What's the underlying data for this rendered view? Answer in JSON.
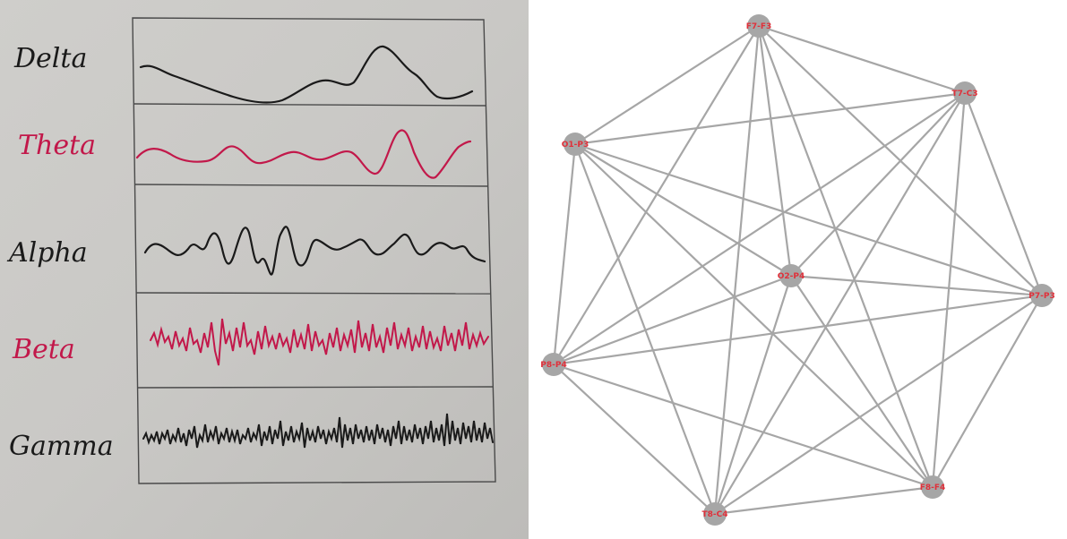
{
  "sketch": {
    "bands": [
      {
        "label": "Delta",
        "color": "#1a1a1a"
      },
      {
        "label": "Theta",
        "color": "#c2184a"
      },
      {
        "label": "Alpha",
        "color": "#1a1a1a"
      },
      {
        "label": "Beta",
        "color": "#c2184a"
      },
      {
        "label": "Gamma",
        "color": "#1a1a1a"
      }
    ],
    "paper_color": "#c9c8c5"
  },
  "graph": {
    "nodes": [
      {
        "id": "F7-F3"
      },
      {
        "id": "T7-C3"
      },
      {
        "id": "O1-P3"
      },
      {
        "id": "O2-P4"
      },
      {
        "id": "P7-P3"
      },
      {
        "id": "P8-P4"
      },
      {
        "id": "F8-F4"
      },
      {
        "id": "T8-C4"
      }
    ],
    "edges": [
      [
        "F7-F3",
        "T7-C3"
      ],
      [
        "F7-F3",
        "O1-P3"
      ],
      [
        "F7-F3",
        "O2-P4"
      ],
      [
        "F7-F3",
        "P7-P3"
      ],
      [
        "F7-F3",
        "P8-P4"
      ],
      [
        "F7-F3",
        "F8-F4"
      ],
      [
        "F7-F3",
        "T8-C4"
      ],
      [
        "T7-C3",
        "O1-P3"
      ],
      [
        "T7-C3",
        "O2-P4"
      ],
      [
        "T7-C3",
        "P7-P3"
      ],
      [
        "T7-C3",
        "P8-P4"
      ],
      [
        "T7-C3",
        "F8-F4"
      ],
      [
        "T7-C3",
        "T8-C4"
      ],
      [
        "O1-P3",
        "O2-P4"
      ],
      [
        "O1-P3",
        "P7-P3"
      ],
      [
        "O1-P3",
        "P8-P4"
      ],
      [
        "O1-P3",
        "F8-F4"
      ],
      [
        "O1-P3",
        "T8-C4"
      ],
      [
        "O2-P4",
        "P7-P3"
      ],
      [
        "O2-P4",
        "P8-P4"
      ],
      [
        "O2-P4",
        "F8-F4"
      ],
      [
        "O2-P4",
        "T8-C4"
      ],
      [
        "P7-P3",
        "P8-P4"
      ],
      [
        "P7-P3",
        "F8-F4"
      ],
      [
        "P7-P3",
        "T8-C4"
      ],
      [
        "P8-P4",
        "F8-F4"
      ],
      [
        "P8-P4",
        "T8-C4"
      ],
      [
        "F8-F4",
        "T8-C4"
      ]
    ],
    "node_color": "#a6a6a6",
    "edge_color": "#a6a6a6",
    "label_color": "#e0303a"
  }
}
